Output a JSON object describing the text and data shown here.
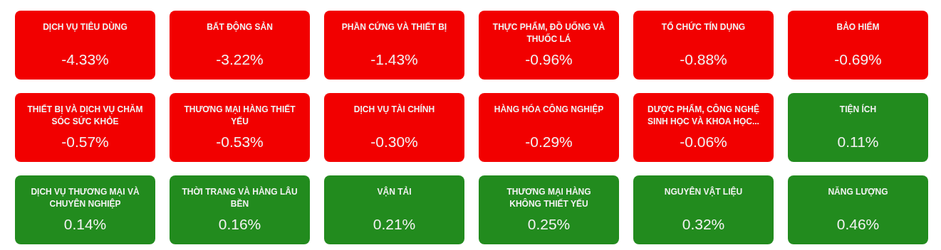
{
  "chart_data": {
    "type": "other",
    "categories": [
      "DỊCH VỤ TIÊU DÙNG",
      "BẤT ĐỘNG SẢN",
      "PHẦN CỨNG VÀ THIẾT BỊ",
      "THỰC PHẨM, ĐỒ UỐNG VÀ THUỐC LÁ",
      "TỔ CHỨC TÍN DỤNG",
      "BẢO HIỂM",
      "THIẾT BỊ VÀ DỊCH VỤ CHĂM SÓC SỨC KHỎE",
      "THƯƠNG MẠI HÀNG THIẾT YẾU",
      "DỊCH VỤ TÀI CHÍNH",
      "HÀNG HÓA CÔNG NGHIỆP",
      "DƯỢC PHẨM, CÔNG NGHỆ SINH HỌC VÀ KHOA HỌC...",
      "TIỆN ÍCH",
      "DỊCH VỤ THƯƠNG MẠI VÀ CHUYÊN NGHIỆP",
      "THỜI TRANG VÀ HÀNG LÂU BỀN",
      "VẬN TẢI",
      "THƯƠNG MẠI HÀNG KHÔNG THIẾT YẾU",
      "NGUYÊN VẬT LIỆU",
      "NĂNG LƯỢNG"
    ],
    "values": [
      -4.33,
      -3.22,
      -1.43,
      -0.96,
      -0.88,
      -0.69,
      -0.57,
      -0.53,
      -0.3,
      -0.29,
      -0.06,
      0.11,
      0.14,
      0.16,
      0.21,
      0.25,
      0.32,
      0.46
    ],
    "value_labels": [
      "-4.33%",
      "-3.22%",
      "-1.43%",
      "-0.96%",
      "-0.88%",
      "-0.69%",
      "-0.57%",
      "-0.53%",
      "-0.30%",
      "-0.29%",
      "-0.06%",
      "0.11%",
      "0.14%",
      "0.16%",
      "0.21%",
      "0.25%",
      "0.32%",
      "0.46%"
    ],
    "colors": [
      "#f20000",
      "#f20000",
      "#f20000",
      "#f20000",
      "#f20000",
      "#f20000",
      "#f20000",
      "#f20000",
      "#f20000",
      "#f20000",
      "#f20000",
      "#228b1e",
      "#228b1e",
      "#228b1e",
      "#228b1e",
      "#228b1e",
      "#228b1e",
      "#228b1e"
    ]
  }
}
